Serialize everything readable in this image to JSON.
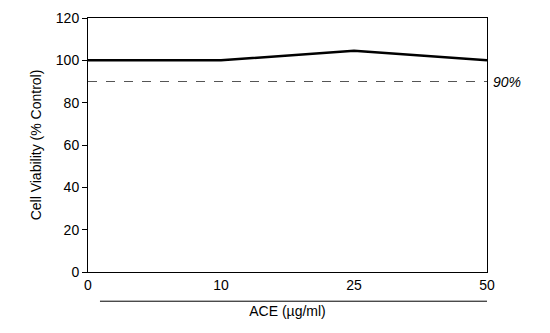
{
  "chart_data": {
    "type": "line",
    "x_label": "ACE (µg/ml)",
    "y_label": "Cell Viability (% Control)",
    "categories": [
      "0",
      "10",
      "25",
      "50"
    ],
    "values": [
      100,
      100,
      104.5,
      100
    ],
    "color": "#000000",
    "ylim": [
      0,
      120
    ],
    "yticks": [
      0,
      20,
      40,
      60,
      80,
      100,
      120
    ],
    "grid": false,
    "annotations": [
      {
        "text": "90%",
        "y": 90,
        "line_style": "dashed"
      }
    ]
  }
}
